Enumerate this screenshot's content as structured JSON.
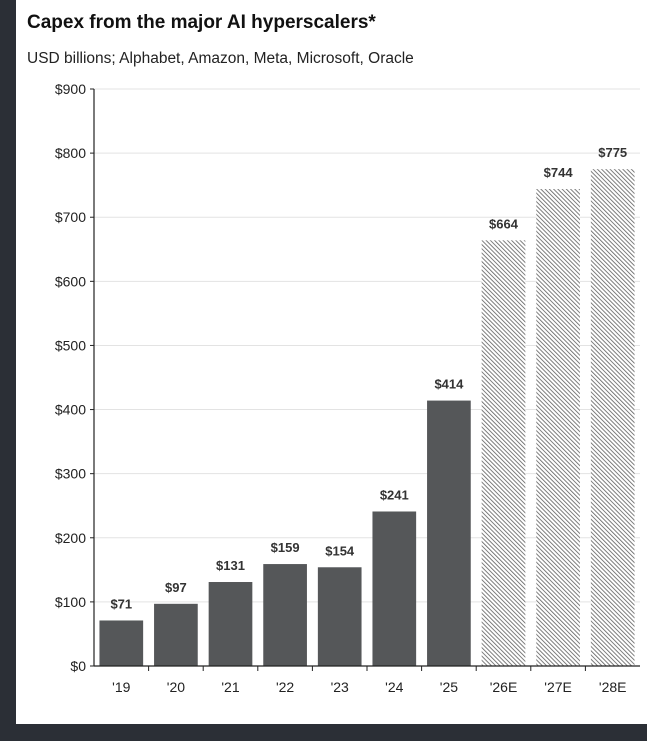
{
  "chart_data": {
    "type": "bar",
    "title": "Capex from the major AI hyperscalers*",
    "subtitle": "USD billions; Alphabet, Amazon, Meta, Microsoft, Oracle",
    "categories": [
      "'19",
      "'20",
      "'21",
      "'22",
      "'23",
      "'24",
      "'25",
      "'26E",
      "'27E",
      "'28E"
    ],
    "values": [
      71,
      97,
      131,
      159,
      154,
      241,
      414,
      664,
      744,
      775
    ],
    "data_labels": [
      "$71",
      "$97",
      "$131",
      "$159",
      "$154",
      "$241",
      "$414",
      "$664",
      "$744",
      "$775"
    ],
    "estimate": [
      false,
      false,
      false,
      false,
      false,
      false,
      false,
      true,
      true,
      true
    ],
    "ylim": [
      0,
      900
    ],
    "yticks": [
      0,
      100,
      200,
      300,
      400,
      500,
      600,
      700,
      800,
      900
    ],
    "ytick_labels": [
      "$0",
      "$100",
      "$200",
      "$300",
      "$400",
      "$500",
      "$600",
      "$700",
      "$800",
      "$900"
    ],
    "grid": true,
    "colors": {
      "actual": "#555759",
      "estimate_hatch": "#666666",
      "grid": "#e3e3e3",
      "axis": "#222222"
    }
  }
}
